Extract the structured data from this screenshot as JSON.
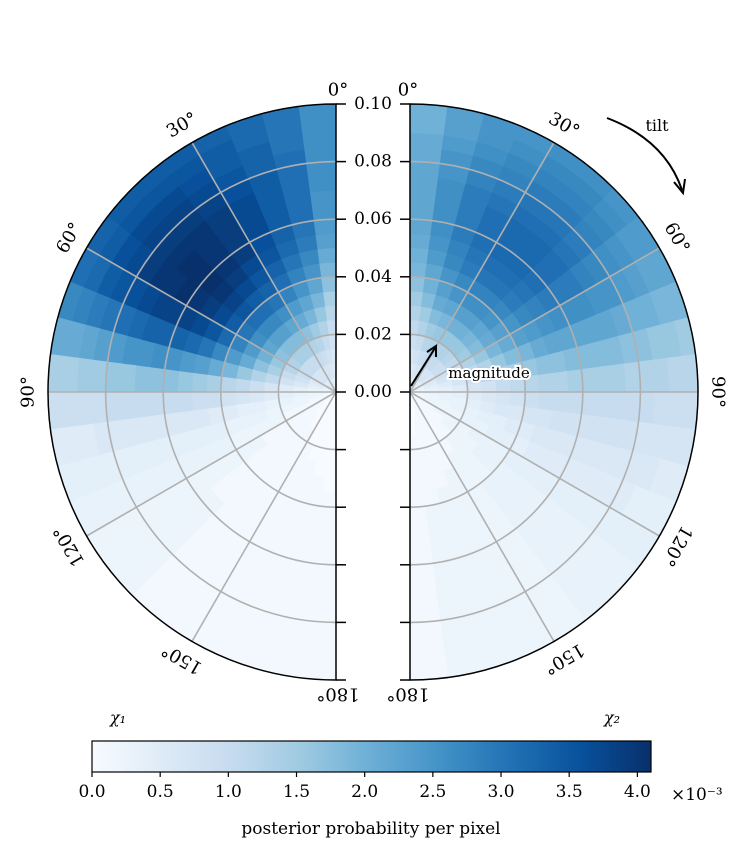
{
  "chart_data": {
    "type": "heatmap",
    "subtype": "half-polar posterior density (spin tilt vs spin magnitude)",
    "colormap": "Blues",
    "panels": [
      {
        "label": "χ₁",
        "side": "left"
      },
      {
        "label": "χ₂",
        "side": "right"
      }
    ],
    "angle_axis": {
      "label": "tilt",
      "ticks": [
        "0°",
        "30°",
        "60°",
        "90°",
        "120°",
        "150°",
        "180°"
      ],
      "values_deg": [
        0,
        30,
        60,
        90,
        120,
        150,
        180
      ]
    },
    "radial_axis": {
      "label": "magnitude",
      "ticks": [
        "0.00",
        "0.02",
        "0.04",
        "0.06",
        "0.08",
        "0.10"
      ],
      "values": [
        0.0,
        0.02,
        0.04,
        0.06,
        0.08,
        0.1
      ],
      "range": [
        0,
        0.1
      ]
    },
    "colorbar": {
      "label": "posterior probability per pixel",
      "ticks": [
        "0.0",
        "0.5",
        "1.0",
        "1.5",
        "2.0",
        "2.5",
        "3.0",
        "3.5",
        "4.0"
      ],
      "values": [
        0.0,
        0.5,
        1.0,
        1.5,
        2.0,
        2.5,
        3.0,
        3.5,
        4.0
      ],
      "range": [
        0,
        4.1
      ],
      "exponent": "×10⁻³"
    },
    "grid": true,
    "theta_bins": [
      3.75,
      11.25,
      18.75,
      26.25,
      33.75,
      41.25,
      48.75,
      56.25,
      63.75,
      71.25,
      78.75,
      86.25,
      93.75,
      101.25,
      108.75,
      116.25,
      123.75,
      131.25,
      138.75,
      146.25,
      153.75,
      161.25,
      168.75,
      176.25
    ],
    "magnitude_bins": [
      0.0025,
      0.0075,
      0.0125,
      0.0175,
      0.0225,
      0.0275,
      0.0325,
      0.0375,
      0.0425,
      0.0475,
      0.0525,
      0.0575,
      0.0625,
      0.0675,
      0.0725,
      0.0775,
      0.0825,
      0.0875,
      0.0925,
      0.0975
    ],
    "density_1": [
      [
        0.4,
        0.5,
        0.6,
        0.8,
        1.0,
        1.2,
        1.4,
        1.7,
        1.9,
        2.1,
        2.3,
        2.4,
        2.5,
        2.5,
        2.6,
        2.6,
        2.6,
        2.6,
        2.6,
        2.6
      ],
      [
        0.4,
        0.6,
        0.8,
        1.0,
        1.3,
        1.6,
        1.9,
        2.2,
        2.5,
        2.7,
        2.9,
        3.0,
        3.1,
        3.1,
        3.1,
        3.1,
        3.1,
        3.0,
        3.0,
        3.0
      ],
      [
        0.5,
        0.7,
        0.9,
        1.2,
        1.5,
        1.9,
        2.2,
        2.5,
        2.8,
        3.0,
        3.2,
        3.3,
        3.4,
        3.4,
        3.4,
        3.4,
        3.3,
        3.3,
        3.2,
        3.2
      ],
      [
        0.5,
        0.7,
        1.0,
        1.3,
        1.7,
        2.1,
        2.4,
        2.8,
        3.1,
        3.3,
        3.5,
        3.6,
        3.7,
        3.7,
        3.7,
        3.6,
        3.5,
        3.4,
        3.4,
        3.3
      ],
      [
        0.5,
        0.7,
        1.0,
        1.4,
        1.8,
        2.2,
        2.6,
        3.0,
        3.3,
        3.5,
        3.7,
        3.9,
        3.9,
        3.9,
        3.9,
        3.8,
        3.7,
        3.6,
        3.5,
        3.4
      ],
      [
        0.5,
        0.7,
        1.0,
        1.4,
        1.8,
        2.3,
        2.7,
        3.1,
        3.4,
        3.7,
        3.9,
        4.0,
        4.0,
        4.0,
        4.0,
        3.9,
        3.8,
        3.7,
        3.5,
        3.4
      ],
      [
        0.5,
        0.7,
        1.0,
        1.4,
        1.8,
        2.3,
        2.7,
        3.1,
        3.5,
        3.8,
        4.0,
        4.1,
        4.1,
        4.1,
        4.0,
        3.9,
        3.8,
        3.7,
        3.5,
        3.4
      ],
      [
        0.5,
        0.7,
        1.0,
        1.3,
        1.7,
        2.2,
        2.6,
        3.0,
        3.4,
        3.7,
        3.9,
        4.0,
        4.1,
        4.0,
        4.0,
        3.9,
        3.7,
        3.6,
        3.4,
        3.3
      ],
      [
        0.4,
        0.6,
        0.9,
        1.2,
        1.6,
        2.0,
        2.4,
        2.8,
        3.2,
        3.5,
        3.7,
        3.8,
        3.8,
        3.8,
        3.7,
        3.6,
        3.5,
        3.4,
        3.2,
        3.1
      ],
      [
        0.4,
        0.5,
        0.8,
        1.0,
        1.4,
        1.7,
        2.1,
        2.4,
        2.7,
        3.0,
        3.2,
        3.3,
        3.3,
        3.3,
        3.2,
        3.1,
        3.0,
        2.9,
        2.8,
        2.7
      ],
      [
        0.3,
        0.4,
        0.6,
        0.8,
        1.1,
        1.3,
        1.6,
        1.9,
        2.1,
        2.3,
        2.4,
        2.5,
        2.6,
        2.5,
        2.5,
        2.4,
        2.3,
        2.2,
        2.1,
        2.1
      ],
      [
        0.2,
        0.3,
        0.4,
        0.5,
        0.7,
        0.9,
        1.1,
        1.2,
        1.4,
        1.5,
        1.6,
        1.7,
        1.7,
        1.7,
        1.6,
        1.6,
        1.5,
        1.5,
        1.4,
        1.4
      ],
      [
        0.2,
        0.2,
        0.3,
        0.4,
        0.5,
        0.6,
        0.7,
        0.8,
        0.9,
        0.9,
        1.0,
        1.0,
        1.0,
        1.0,
        1.0,
        1.0,
        0.9,
        0.9,
        0.9,
        0.9
      ],
      [
        0.1,
        0.2,
        0.2,
        0.3,
        0.3,
        0.4,
        0.4,
        0.5,
        0.5,
        0.6,
        0.6,
        0.6,
        0.6,
        0.6,
        0.6,
        0.6,
        0.6,
        0.5,
        0.5,
        0.5
      ],
      [
        0.1,
        0.1,
        0.2,
        0.2,
        0.2,
        0.3,
        0.3,
        0.3,
        0.4,
        0.4,
        0.4,
        0.4,
        0.4,
        0.4,
        0.4,
        0.4,
        0.4,
        0.4,
        0.4,
        0.4
      ],
      [
        0.1,
        0.1,
        0.1,
        0.1,
        0.2,
        0.2,
        0.2,
        0.2,
        0.3,
        0.3,
        0.3,
        0.3,
        0.3,
        0.3,
        0.3,
        0.3,
        0.3,
        0.3,
        0.3,
        0.3
      ],
      [
        0.1,
        0.1,
        0.1,
        0.1,
        0.1,
        0.1,
        0.2,
        0.2,
        0.2,
        0.2,
        0.2,
        0.2,
        0.2,
        0.2,
        0.2,
        0.2,
        0.2,
        0.2,
        0.2,
        0.2
      ],
      [
        0.0,
        0.1,
        0.1,
        0.1,
        0.1,
        0.1,
        0.1,
        0.1,
        0.1,
        0.1,
        0.1,
        0.2,
        0.2,
        0.2,
        0.2,
        0.2,
        0.2,
        0.2,
        0.2,
        0.2
      ],
      [
        0.0,
        0.0,
        0.1,
        0.1,
        0.1,
        0.1,
        0.1,
        0.1,
        0.1,
        0.1,
        0.1,
        0.1,
        0.1,
        0.1,
        0.1,
        0.1,
        0.1,
        0.1,
        0.1,
        0.1
      ],
      [
        0.0,
        0.0,
        0.0,
        0.1,
        0.1,
        0.1,
        0.1,
        0.1,
        0.1,
        0.1,
        0.1,
        0.1,
        0.1,
        0.1,
        0.1,
        0.1,
        0.1,
        0.1,
        0.1,
        0.1
      ],
      [
        0.0,
        0.0,
        0.0,
        0.0,
        0.1,
        0.1,
        0.1,
        0.1,
        0.1,
        0.1,
        0.1,
        0.1,
        0.1,
        0.1,
        0.1,
        0.1,
        0.1,
        0.1,
        0.1,
        0.1
      ],
      [
        0.0,
        0.0,
        0.0,
        0.0,
        0.0,
        0.1,
        0.1,
        0.1,
        0.1,
        0.1,
        0.1,
        0.1,
        0.1,
        0.1,
        0.1,
        0.1,
        0.1,
        0.1,
        0.1,
        0.1
      ],
      [
        0.0,
        0.0,
        0.0,
        0.0,
        0.0,
        0.0,
        0.1,
        0.1,
        0.1,
        0.1,
        0.1,
        0.1,
        0.1,
        0.1,
        0.1,
        0.1,
        0.1,
        0.1,
        0.1,
        0.1
      ],
      [
        0.0,
        0.0,
        0.0,
        0.0,
        0.0,
        0.0,
        0.0,
        0.1,
        0.1,
        0.1,
        0.1,
        0.1,
        0.1,
        0.1,
        0.1,
        0.1,
        0.1,
        0.1,
        0.1,
        0.1
      ]
    ],
    "density_2": [
      [
        0.4,
        0.5,
        0.7,
        0.9,
        1.1,
        1.3,
        1.5,
        1.7,
        1.9,
        2.0,
        2.1,
        2.2,
        2.2,
        2.2,
        2.2,
        2.2,
        2.1,
        2.1,
        2.0,
        2.0
      ],
      [
        0.4,
        0.6,
        0.8,
        1.0,
        1.3,
        1.5,
        1.8,
        2.0,
        2.2,
        2.4,
        2.5,
        2.6,
        2.6,
        2.6,
        2.6,
        2.5,
        2.5,
        2.4,
        2.3,
        2.3
      ],
      [
        0.5,
        0.7,
        0.9,
        1.2,
        1.5,
        1.8,
        2.1,
        2.3,
        2.5,
        2.7,
        2.8,
        2.9,
        2.9,
        2.9,
        2.9,
        2.8,
        2.7,
        2.6,
        2.5,
        2.5
      ],
      [
        0.5,
        0.7,
        1.0,
        1.3,
        1.6,
        1.9,
        2.2,
        2.5,
        2.7,
        2.9,
        3.0,
        3.1,
        3.1,
        3.1,
        3.0,
        2.9,
        2.8,
        2.7,
        2.6,
        2.5
      ],
      [
        0.5,
        0.7,
        1.0,
        1.3,
        1.6,
        2.0,
        2.3,
        2.6,
        2.8,
        3.0,
        3.1,
        3.2,
        3.2,
        3.2,
        3.1,
        3.0,
        2.9,
        2.8,
        2.7,
        2.6
      ],
      [
        0.5,
        0.7,
        1.0,
        1.3,
        1.6,
        2.0,
        2.3,
        2.6,
        2.8,
        3.0,
        3.1,
        3.2,
        3.2,
        3.2,
        3.1,
        3.0,
        2.9,
        2.8,
        2.7,
        2.6
      ],
      [
        0.5,
        0.7,
        0.9,
        1.2,
        1.6,
        1.9,
        2.2,
        2.5,
        2.7,
        2.9,
        3.0,
        3.1,
        3.1,
        3.1,
        3.0,
        2.9,
        2.8,
        2.7,
        2.6,
        2.5
      ],
      [
        0.4,
        0.6,
        0.9,
        1.1,
        1.5,
        1.8,
        2.1,
        2.3,
        2.5,
        2.7,
        2.8,
        2.9,
        2.9,
        2.9,
        2.8,
        2.7,
        2.6,
        2.5,
        2.4,
        2.4
      ],
      [
        0.4,
        0.6,
        0.8,
        1.0,
        1.3,
        1.6,
        1.9,
        2.1,
        2.3,
        2.4,
        2.5,
        2.6,
        2.6,
        2.6,
        2.5,
        2.5,
        2.4,
        2.3,
        2.2,
        2.2
      ],
      [
        0.3,
        0.5,
        0.7,
        0.9,
        1.1,
        1.3,
        1.6,
        1.8,
        1.9,
        2.1,
        2.2,
        2.2,
        2.2,
        2.2,
        2.2,
        2.1,
        2.0,
        2.0,
        1.9,
        1.9
      ],
      [
        0.3,
        0.4,
        0.5,
        0.7,
        0.9,
        1.1,
        1.3,
        1.4,
        1.6,
        1.7,
        1.7,
        1.8,
        1.8,
        1.8,
        1.8,
        1.7,
        1.7,
        1.6,
        1.6,
        1.5
      ],
      [
        0.2,
        0.3,
        0.4,
        0.5,
        0.7,
        0.8,
        1.0,
        1.1,
        1.2,
        1.3,
        1.3,
        1.4,
        1.4,
        1.4,
        1.4,
        1.3,
        1.3,
        1.3,
        1.2,
        1.2
      ],
      [
        0.2,
        0.3,
        0.3,
        0.4,
        0.5,
        0.6,
        0.7,
        0.8,
        0.9,
        1.0,
        1.0,
        1.0,
        1.0,
        1.0,
        1.0,
        1.0,
        1.0,
        0.9,
        0.9,
        0.9
      ],
      [
        0.2,
        0.2,
        0.3,
        0.3,
        0.4,
        0.5,
        0.6,
        0.6,
        0.7,
        0.7,
        0.8,
        0.8,
        0.8,
        0.8,
        0.8,
        0.8,
        0.7,
        0.7,
        0.7,
        0.7
      ],
      [
        0.1,
        0.2,
        0.2,
        0.3,
        0.3,
        0.4,
        0.4,
        0.5,
        0.5,
        0.6,
        0.6,
        0.6,
        0.6,
        0.6,
        0.6,
        0.6,
        0.6,
        0.6,
        0.5,
        0.5
      ],
      [
        0.1,
        0.2,
        0.2,
        0.2,
        0.3,
        0.3,
        0.4,
        0.4,
        0.4,
        0.5,
        0.5,
        0.5,
        0.5,
        0.5,
        0.5,
        0.5,
        0.5,
        0.4,
        0.4,
        0.4
      ],
      [
        0.1,
        0.1,
        0.2,
        0.2,
        0.2,
        0.3,
        0.3,
        0.3,
        0.4,
        0.4,
        0.4,
        0.4,
        0.4,
        0.4,
        0.4,
        0.4,
        0.4,
        0.4,
        0.4,
        0.4
      ],
      [
        0.1,
        0.1,
        0.1,
        0.2,
        0.2,
        0.2,
        0.3,
        0.3,
        0.3,
        0.3,
        0.3,
        0.3,
        0.3,
        0.3,
        0.3,
        0.3,
        0.3,
        0.3,
        0.3,
        0.3
      ],
      [
        0.1,
        0.1,
        0.1,
        0.1,
        0.2,
        0.2,
        0.2,
        0.2,
        0.3,
        0.3,
        0.3,
        0.3,
        0.3,
        0.3,
        0.3,
        0.3,
        0.3,
        0.3,
        0.3,
        0.3
      ],
      [
        0.1,
        0.1,
        0.1,
        0.1,
        0.1,
        0.2,
        0.2,
        0.2,
        0.2,
        0.2,
        0.2,
        0.2,
        0.2,
        0.2,
        0.2,
        0.2,
        0.2,
        0.2,
        0.2,
        0.2
      ],
      [
        0.0,
        0.1,
        0.1,
        0.1,
        0.1,
        0.1,
        0.2,
        0.2,
        0.2,
        0.2,
        0.2,
        0.2,
        0.2,
        0.2,
        0.2,
        0.2,
        0.2,
        0.2,
        0.2,
        0.2
      ],
      [
        0.0,
        0.1,
        0.1,
        0.1,
        0.1,
        0.1,
        0.1,
        0.2,
        0.2,
        0.2,
        0.2,
        0.2,
        0.2,
        0.2,
        0.2,
        0.2,
        0.2,
        0.2,
        0.2,
        0.2
      ],
      [
        0.0,
        0.0,
        0.1,
        0.1,
        0.1,
        0.1,
        0.1,
        0.1,
        0.2,
        0.2,
        0.2,
        0.2,
        0.2,
        0.2,
        0.2,
        0.2,
        0.2,
        0.2,
        0.2,
        0.2
      ],
      [
        0.0,
        0.0,
        0.0,
        0.1,
        0.1,
        0.1,
        0.1,
        0.1,
        0.1,
        0.1,
        0.1,
        0.1,
        0.1,
        0.1,
        0.1,
        0.1,
        0.1,
        0.1,
        0.1,
        0.1
      ]
    ]
  },
  "colors": {
    "cmap_stops": [
      "#f7fbff",
      "#deebf7",
      "#c6dbef",
      "#9ecae1",
      "#6baed6",
      "#4292c6",
      "#2171b5",
      "#08519c",
      "#08306b"
    ],
    "grid": "#b0b0b0",
    "frame": "#000000"
  }
}
